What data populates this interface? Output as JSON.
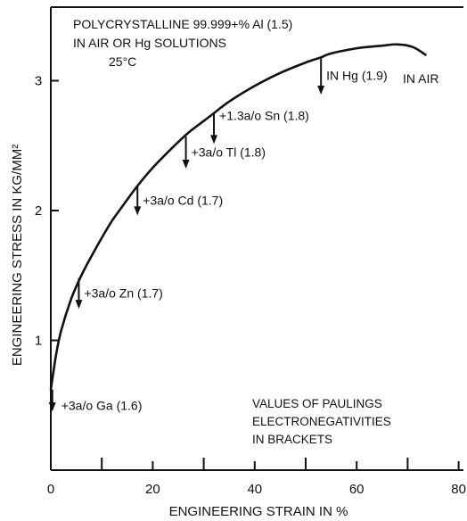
{
  "chart_data": {
    "type": "line",
    "title_lines": [
      "POLYCRYSTALLINE 99.999+% Al (1.5)",
      "IN AIR OR Hg SOLUTIONS",
      "25°C"
    ],
    "xlabel": "ENGINEERING STRAIN IN %",
    "ylabel": "ENGINEERING STRESS IN KG/MM²",
    "xlim": [
      0,
      82
    ],
    "ylim": [
      0,
      3.55
    ],
    "xticks": [
      0,
      20,
      40,
      60,
      80
    ],
    "yticks": [
      1,
      2,
      3
    ],
    "grid": false,
    "curve": {
      "name": "IN AIR",
      "x": [
        0,
        1,
        2,
        4,
        6,
        8,
        10,
        12,
        14,
        17,
        20,
        24,
        27,
        30,
        32,
        35,
        40,
        45,
        50,
        53,
        55,
        60,
        65,
        68,
        71,
        73.5
      ],
      "y": [
        0.62,
        0.88,
        1.07,
        1.32,
        1.5,
        1.65,
        1.79,
        1.92,
        2.03,
        2.19,
        2.33,
        2.49,
        2.6,
        2.69,
        2.75,
        2.84,
        2.96,
        3.06,
        3.14,
        3.18,
        3.21,
        3.25,
        3.27,
        3.28,
        3.26,
        3.2
      ]
    },
    "drops": [
      {
        "label": "+3a/o Ga (1.6)",
        "x": 0.3,
        "y_from": 0.62,
        "y_to": 0.46
      },
      {
        "label": "+3a/o Zn (1.7)",
        "x": 5.5,
        "y_from": 1.48,
        "y_to": 1.25
      },
      {
        "label": "+3a/o Cd (1.7)",
        "x": 17,
        "y_from": 2.19,
        "y_to": 1.97
      },
      {
        "label": "+3a/o Tl (1.8)",
        "x": 26.5,
        "y_from": 2.57,
        "y_to": 2.33
      },
      {
        "label": "+1.3a/o Sn (1.8)",
        "x": 32,
        "y_from": 2.75,
        "y_to": 2.52
      },
      {
        "label": "IN Hg (1.9)",
        "x": 53,
        "y_from": 3.18,
        "y_to": 2.9
      }
    ],
    "annotations": [
      "VALUES OF PAULINGS",
      "ELECTRONEGATIVITIES",
      "IN BRACKETS"
    ]
  }
}
